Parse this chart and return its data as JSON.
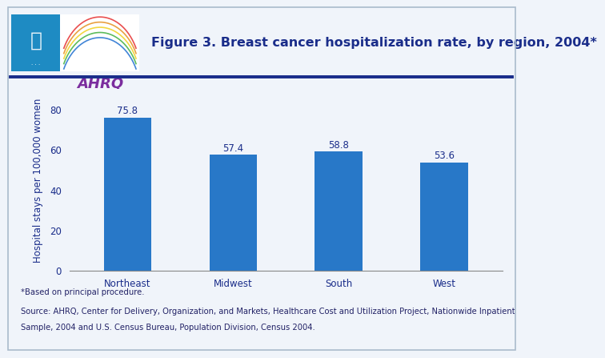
{
  "categories": [
    "Northeast",
    "Midwest",
    "South",
    "West"
  ],
  "values": [
    75.8,
    57.4,
    58.8,
    53.6
  ],
  "bar_color": "#2878c8",
  "title": "Figure 3. Breast cancer hospitalization rate, by region, 2004*",
  "ylabel": "Hospital stays per 100,000 women",
  "ylim": [
    0,
    90
  ],
  "yticks": [
    0,
    20,
    40,
    60,
    80
  ],
  "title_color": "#1a2d8a",
  "title_fontsize": 11.5,
  "tick_fontsize": 8.5,
  "ylabel_fontsize": 8.5,
  "bar_label_fontsize": 8.5,
  "bar_label_color": "#1a2d8a",
  "axis_label_color": "#1a2d8a",
  "tick_color": "#1a2d8a",
  "footnote1": "*Based on principal procedure.",
  "footnote2": "Source: AHRQ, Center for Delivery, Organization, and Markets, Healthcare Cost and Utilization Project, Nationwide Inpatient",
  "footnote3": "Sample, 2004 and U.S. Census Bureau, Population Division, Census 2004.",
  "bg_color": "#f0f4fa",
  "plot_bg_color": "#f0f4fa",
  "separator_color": "#1a2d8a",
  "logo_blue": "#1e8bc3",
  "logo_bg": "#ffffff",
  "ahrq_color": "#7b2d9e",
  "ahrq_sub_color": "#1a2d8a",
  "border_color": "#aabbcc"
}
